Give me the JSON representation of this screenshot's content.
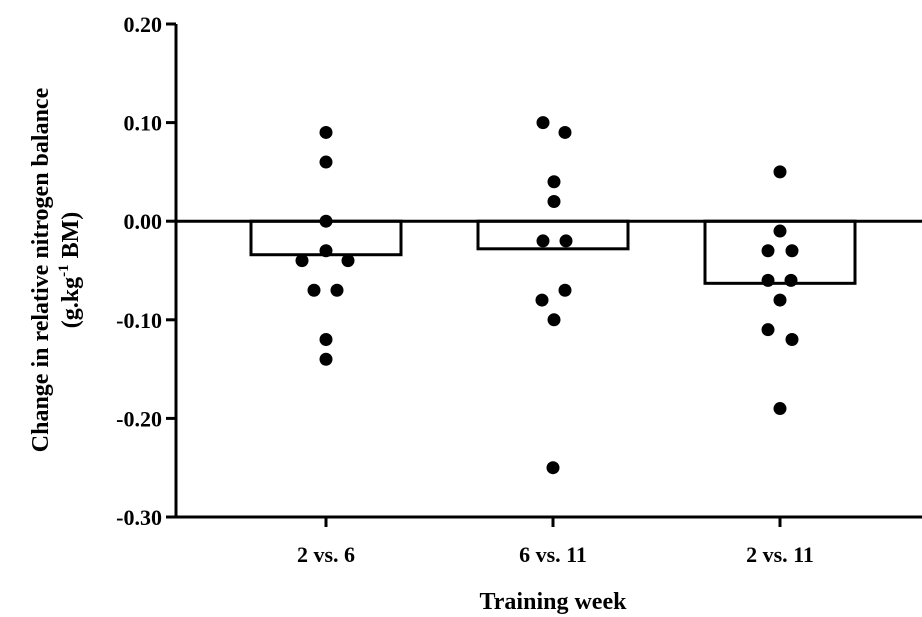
{
  "chart_data": {
    "type": "bar",
    "categories": [
      "2 vs. 6",
      "6 vs. 11",
      "2 vs. 11"
    ],
    "values": [
      -0.034,
      -0.028,
      -0.063
    ],
    "points": [
      [
        0.09,
        0.06,
        0.0,
        -0.03,
        -0.04,
        -0.04,
        -0.07,
        -0.07,
        -0.12,
        -0.14
      ],
      [
        0.1,
        0.09,
        0.04,
        0.02,
        -0.02,
        -0.02,
        -0.07,
        -0.08,
        -0.1,
        -0.25
      ],
      [
        0.05,
        -0.01,
        -0.03,
        -0.03,
        -0.06,
        -0.06,
        -0.08,
        -0.11,
        -0.12,
        -0.19
      ]
    ],
    "yticks": [
      "0.20",
      "0.10",
      "0.00",
      "-0.10",
      "-0.20",
      "-0.30"
    ],
    "ylim": [
      -0.3,
      0.2
    ],
    "xlabel": "Training week",
    "ylabel_line1": "Change in relative nitrogen balance",
    "ylabel_line2_pre": "(g.kg",
    "ylabel_line2_sup": "-1",
    "ylabel_line2_post": " BM)",
    "grid": false,
    "legend": "none"
  }
}
